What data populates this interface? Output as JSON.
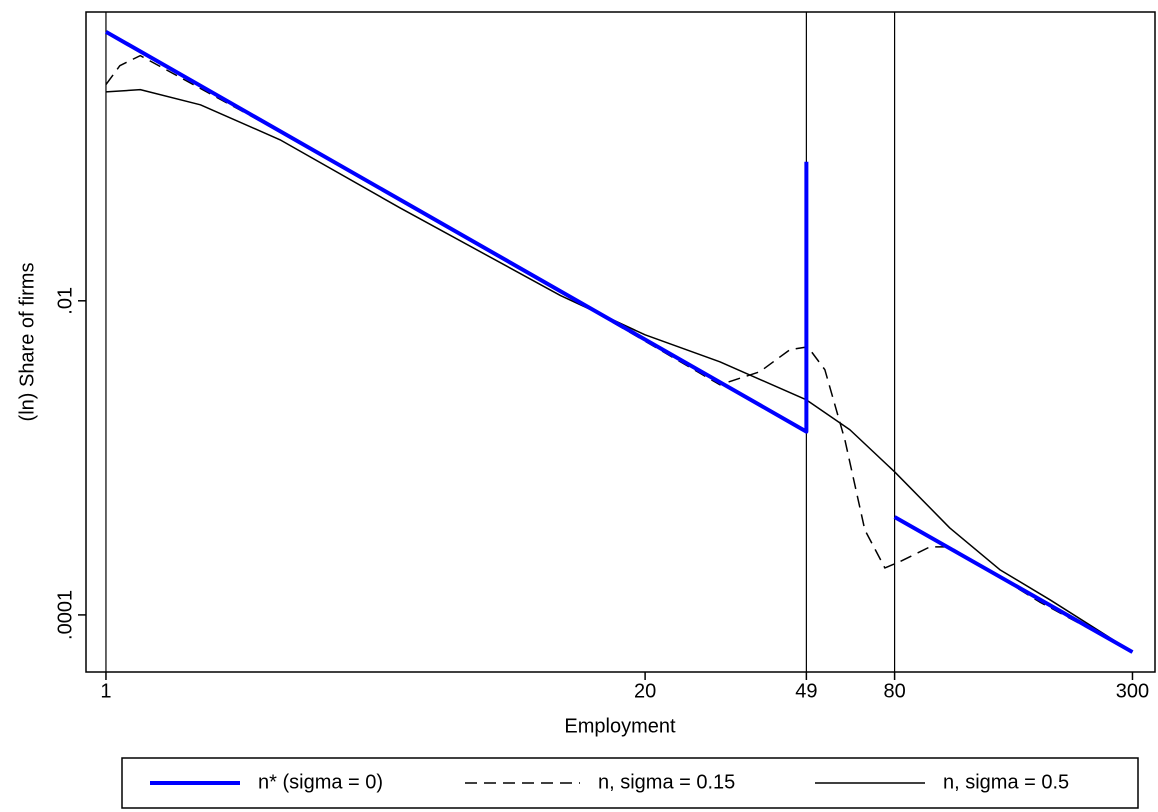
{
  "chart_data": {
    "type": "line",
    "x_label": "Employment",
    "y_label": "(ln) Share of firms",
    "xscale": "log",
    "yscale": "log",
    "xlim": [
      0.895,
      340
    ],
    "ylim": [
      4.33e-05,
      0.69
    ],
    "xticks": [
      1,
      20,
      49,
      80,
      300
    ],
    "yticks": [
      {
        "value": 0.01,
        "label": ".01"
      },
      {
        "value": 0.0001,
        "label": ".0001"
      }
    ],
    "vlines": [
      1,
      49,
      80
    ],
    "series": [
      {
        "name": "n* (sigma = 0)",
        "color": "#0000ff",
        "style": "solid",
        "width": 4,
        "x": [
          1,
          49,
          49,
          49,
          80,
          300
        ],
        "values": [
          0.516,
          0.00147,
          0.0768,
          null,
          0.00042,
          5.8e-05
        ]
      },
      {
        "name": "n, sigma = 0.15",
        "color": "#000000",
        "style": "dashed",
        "width": 1.5,
        "x": [
          1,
          1.08,
          1.21,
          2.94,
          8.93,
          30.3,
          37.8,
          44.7,
          49.4,
          54.3,
          60.7,
          67.8,
          75.8,
          82.3,
          97.3,
          108.7,
          128.5,
          179,
          300
        ],
        "values": [
          0.238,
          0.314,
          0.364,
          0.1014,
          0.0191,
          0.00292,
          0.00353,
          0.00488,
          0.00509,
          0.00364,
          0.0013,
          0.000348,
          0.000199,
          0.000218,
          0.000271,
          0.000271,
          0.000208,
          0.000121,
          5.81e-05
        ]
      },
      {
        "name": "n, sigma = 0.5",
        "color": "#000000",
        "style": "solid",
        "width": 1.5,
        "x": [
          1,
          1.21,
          1.69,
          2.63,
          5.12,
          12.5,
          20,
          30.3,
          49,
          62.4,
          80,
          108.7,
          143.6,
          189.5,
          300
        ],
        "values": [
          0.214,
          0.221,
          0.177,
          0.106,
          0.0391,
          0.0108,
          0.00607,
          0.00409,
          0.00234,
          0.00151,
          0.000815,
          0.000358,
          0.000194,
          0.000125,
          5.81e-05
        ]
      }
    ]
  }
}
